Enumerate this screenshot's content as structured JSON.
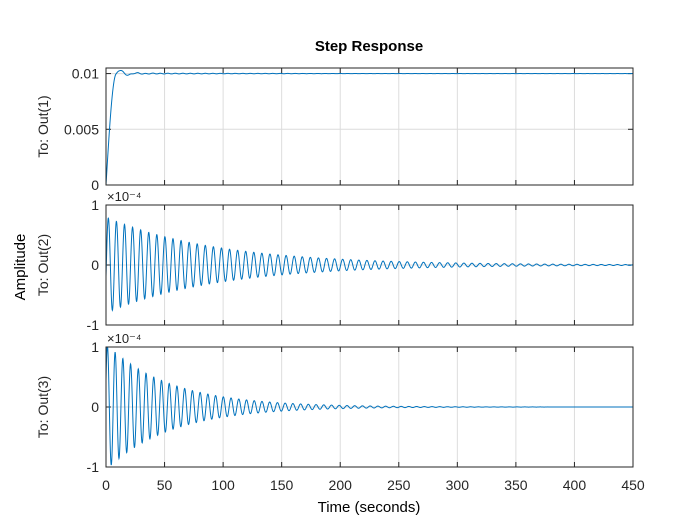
{
  "chart_data": {
    "type": "line",
    "title": "Step Response",
    "xlabel": "Time (seconds)",
    "ylabel": "Amplitude",
    "xlim": [
      0,
      450
    ],
    "x_ticks": [
      0,
      50,
      100,
      150,
      200,
      250,
      300,
      350,
      400,
      450
    ],
    "x_tick_labels": [
      "0",
      "50",
      "100",
      "150",
      "200",
      "250",
      "300",
      "350",
      "400",
      "450"
    ],
    "grid": true,
    "line_color": "#0072bd",
    "subplots": [
      {
        "ylabel": "To: Out(1)",
        "ylim": [
          0,
          0.0105
        ],
        "y_ticks": [
          0,
          0.005,
          0.01
        ],
        "y_tick_labels": [
          "0",
          "0.005",
          "0.01"
        ],
        "exponent_label": "",
        "signal": {
          "kind": "rise",
          "final": 0.01,
          "rise_time": 9,
          "overshoot": 0.00045,
          "ripple": 5e-05
        }
      },
      {
        "ylabel": "To: Out(2)",
        "ylim": [
          -1,
          1
        ],
        "y_ticks": [
          -1,
          0,
          1
        ],
        "y_tick_labels": [
          "-1",
          "0",
          "1"
        ],
        "exponent_label": "×10⁻⁴",
        "signal": {
          "kind": "oscillation",
          "amplitude": 0.8,
          "period": 6.9,
          "decay_time": 95,
          "peak_time": 2
        }
      },
      {
        "ylabel": "To: Out(3)",
        "ylim": [
          -1,
          1
        ],
        "y_ticks": [
          -1,
          0,
          1
        ],
        "y_tick_labels": [
          "-1",
          "0",
          "1"
        ],
        "exponent_label": "×10⁻⁴",
        "signal": {
          "kind": "oscillation",
          "amplitude": 1.05,
          "period": 6.6,
          "decay_time": 55,
          "peak_time": 1.2
        }
      }
    ]
  }
}
